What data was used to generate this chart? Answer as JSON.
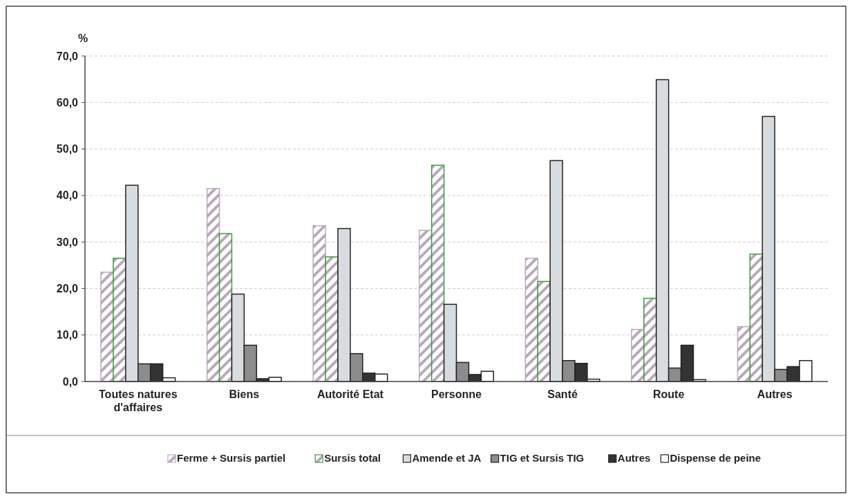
{
  "chart_data": {
    "type": "bar",
    "ylabel": "%",
    "categories": [
      "Toutes natures d'affaires",
      "Biens",
      "Autorité Etat",
      "Personne",
      "Santé",
      "Route",
      "Autres"
    ],
    "series": [
      {
        "name": "Ferme + Sursis partiel",
        "color": "#b9a8bb",
        "values": [
          23.5,
          41.5,
          33.5,
          32.5,
          26.5,
          11.2,
          11.8
        ]
      },
      {
        "name": "Sursis total",
        "color": "#3c9a3c",
        "values": [
          26.5,
          31.8,
          26.8,
          46.5,
          21.5,
          17.9,
          27.4
        ]
      },
      {
        "name": "Amende et JA",
        "color": "#d8dcdf",
        "values": [
          42.2,
          18.8,
          32.9,
          16.6,
          47.5,
          64.9,
          57.0
        ]
      },
      {
        "name": "TIG et Sursis TIG",
        "color": "#8c8c8c",
        "values": [
          3.8,
          7.8,
          6.0,
          4.1,
          4.5,
          2.9,
          2.6
        ]
      },
      {
        "name": "Autres",
        "color": "#333333",
        "values": [
          3.8,
          0.6,
          1.8,
          1.5,
          3.9,
          7.8,
          3.2
        ]
      },
      {
        "name": "Dispense de peine",
        "color": "#ffffff",
        "values": [
          0.8,
          0.9,
          1.6,
          2.2,
          0.5,
          0.4,
          4.5
        ]
      }
    ],
    "ylim": [
      0,
      70
    ],
    "yticks": [
      {
        "value": 0,
        "label": "0,0"
      },
      {
        "value": 10,
        "label": "10,0"
      },
      {
        "value": 20,
        "label": "20,0"
      },
      {
        "value": 30,
        "label": "30,0"
      },
      {
        "value": 40,
        "label": "40,0"
      },
      {
        "value": 50,
        "label": "50,0"
      },
      {
        "value": 60,
        "label": "60,0"
      },
      {
        "value": 70,
        "label": "70,0"
      }
    ],
    "grid": "y",
    "legend": "bottom"
  }
}
